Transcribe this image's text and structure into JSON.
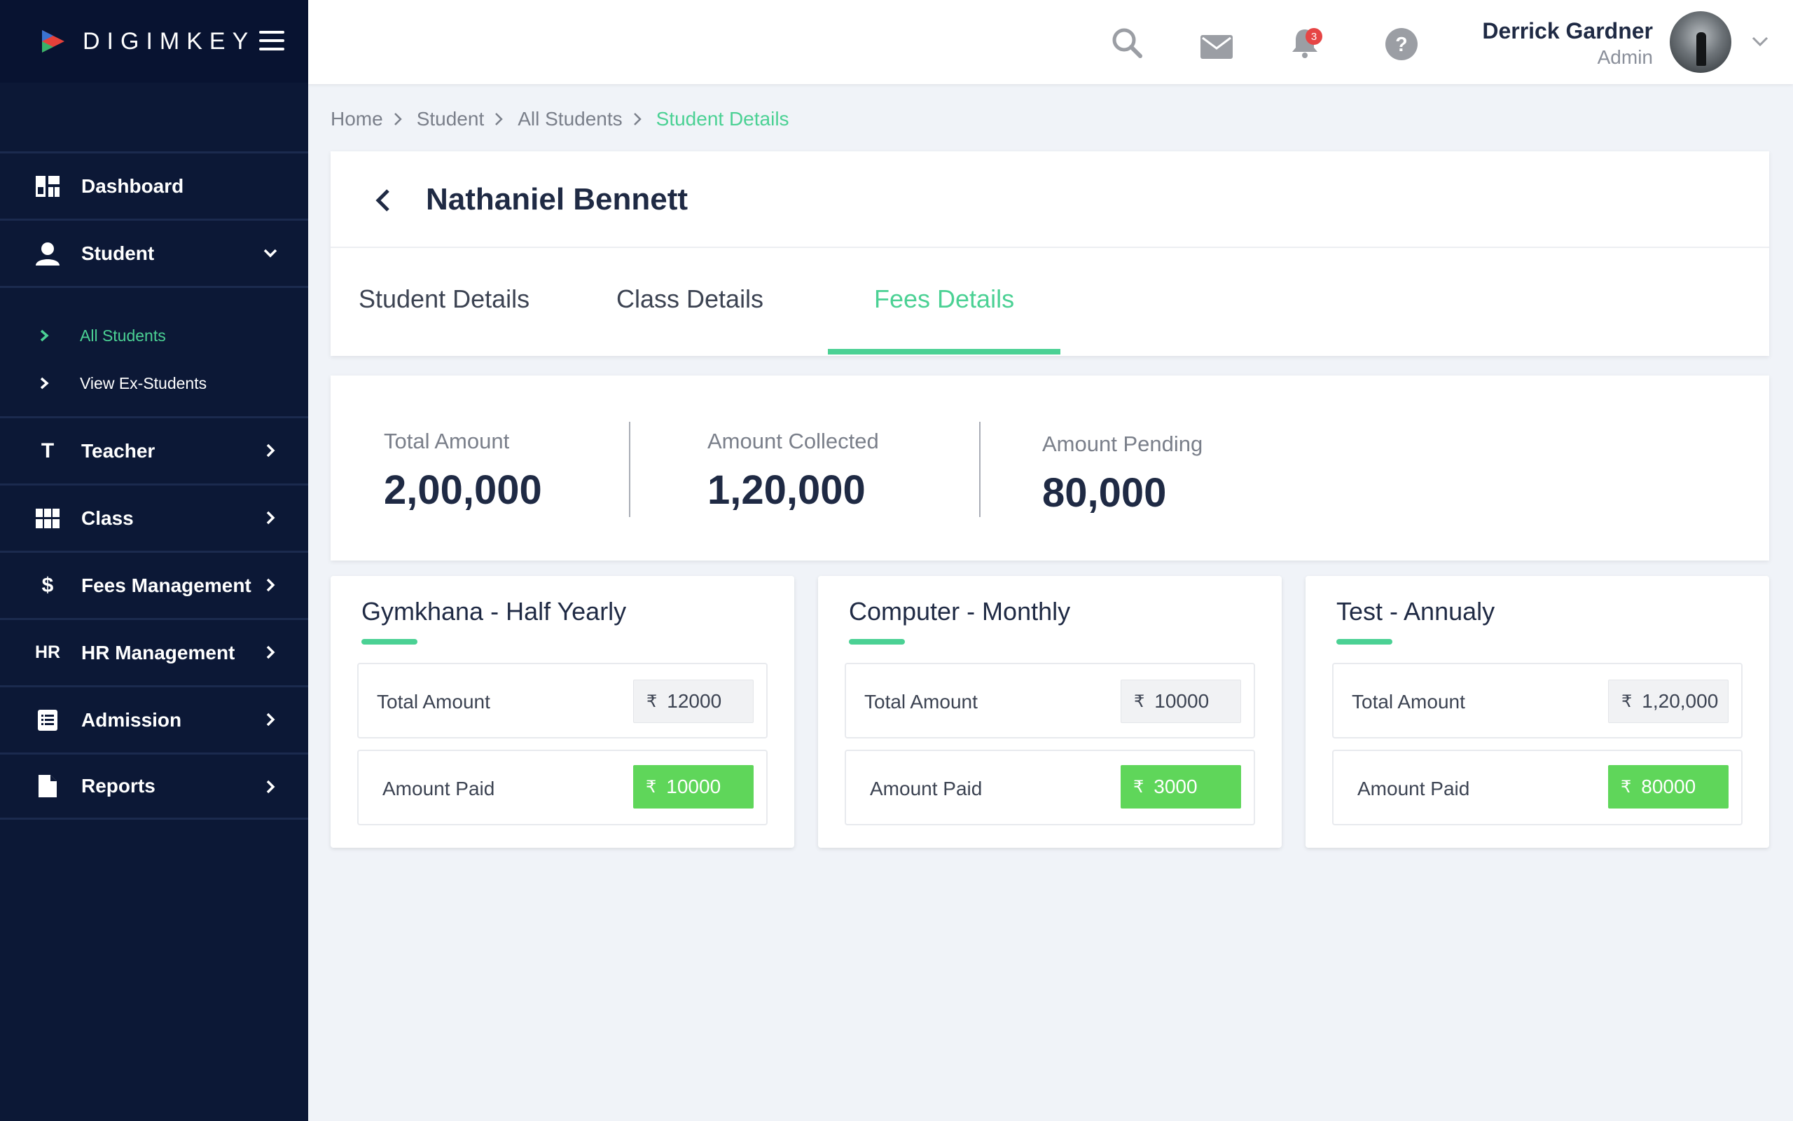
{
  "brand": {
    "name": "DIGIMKEY"
  },
  "sidebar": {
    "items": [
      {
        "label": "Dashboard",
        "icon": "dashboard-icon"
      },
      {
        "label": "Student",
        "icon": "user-icon"
      },
      {
        "label": "Teacher",
        "icon": "teacher-icon",
        "glyph": "T"
      },
      {
        "label": "Class",
        "icon": "grid-icon"
      },
      {
        "label": "Fees Management",
        "icon": "dollar-icon",
        "glyph": "$"
      },
      {
        "label": "HR Management",
        "icon": "hr-icon",
        "glyph": "HR"
      },
      {
        "label": "Admission",
        "icon": "list-icon"
      },
      {
        "label": "Reports",
        "icon": "document-icon"
      }
    ],
    "student_sub": [
      {
        "label": "All Students",
        "active": true
      },
      {
        "label": "View Ex-Students",
        "active": false
      }
    ]
  },
  "topbar": {
    "notification_count": "3",
    "user_name": "Derrick Gardner",
    "user_role": "Admin"
  },
  "breadcrumb": [
    "Home",
    "Student",
    "All Students",
    "Student Details"
  ],
  "page": {
    "title": "Nathaniel Bennett",
    "tabs": [
      "Student Details",
      "Class Details",
      "Fees Details"
    ],
    "active_tab": "Fees Details"
  },
  "summary": {
    "total_label": "Total Amount",
    "total_value": "2,00,000",
    "collected_label": "Amount Collected",
    "collected_value": "1,20,000",
    "pending_label": "Amount Pending",
    "pending_value": "80,000"
  },
  "currency_symbol": "₹",
  "fees": [
    {
      "title": "Gymkhana - Half Yearly",
      "total_label": "Total Amount",
      "total": "12000",
      "paid_label": "Amount Paid",
      "paid": "10000"
    },
    {
      "title": "Computer - Monthly",
      "total_label": "Total Amount",
      "total": "10000",
      "paid_label": "Amount Paid",
      "paid": "3000"
    },
    {
      "title": "Test - Annualy",
      "total_label": "Total Amount",
      "total": "1,20,000",
      "paid_label": "Amount Paid",
      "paid": "80000"
    }
  ],
  "colors": {
    "accent": "#4bd194",
    "sidebar": "#0c1836",
    "paid": "#5fd65a",
    "badge": "#e64545"
  }
}
